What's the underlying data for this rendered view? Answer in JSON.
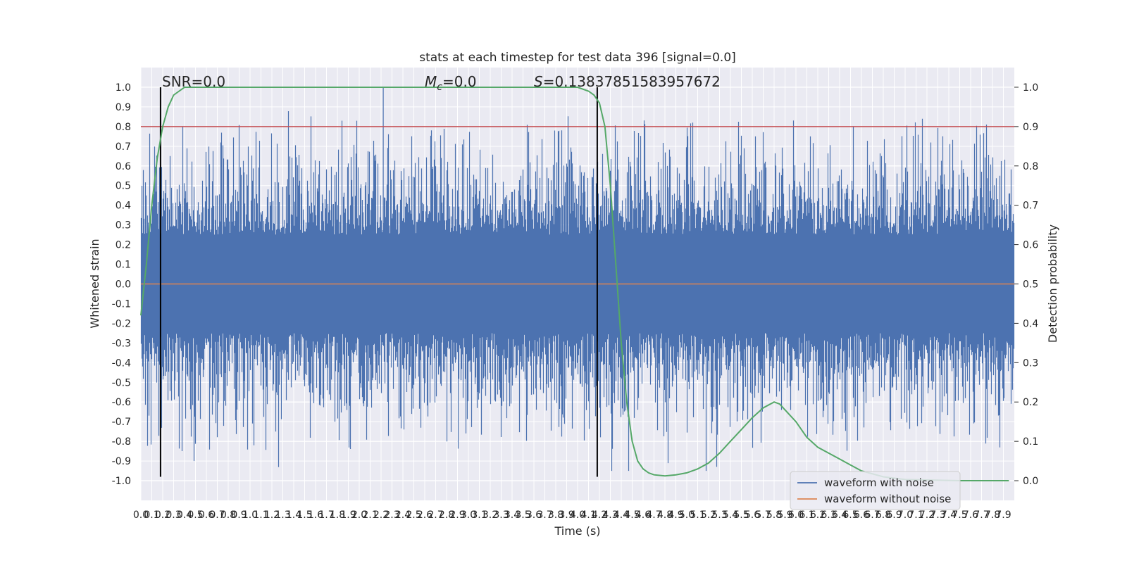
{
  "chart_data": {
    "type": "line",
    "title": "stats at each timestep for test data 396 [signal=0.0]",
    "xlabel": "Time (s)",
    "ylabel": "Whitened strain",
    "y2label": "Detection probability",
    "xlim": [
      0,
      8
    ],
    "ylim": [
      -1.1,
      1.1
    ],
    "y2lim": [
      -0.05,
      1.05
    ],
    "xticks": [
      "0.0",
      "0.1",
      "0.2",
      "0.3",
      "0.4",
      "0.5",
      "0.6",
      "0.7",
      "0.8",
      "0.9",
      "1.0",
      "1.1",
      "1.2",
      "1.3",
      "1.4",
      "1.5",
      "1.6",
      "1.7",
      "1.8",
      "1.9",
      "2.0",
      "2.1",
      "2.2",
      "2.3",
      "2.4",
      "2.5",
      "2.6",
      "2.7",
      "2.8",
      "2.9",
      "3.0",
      "3.1",
      "3.2",
      "3.3",
      "3.4",
      "3.5",
      "3.6",
      "3.7",
      "3.8",
      "3.9",
      "4.0",
      "4.1",
      "4.2",
      "4.3",
      "4.4",
      "4.5",
      "4.6",
      "4.7",
      "4.8",
      "4.9",
      "5.0",
      "5.1",
      "5.2",
      "5.3",
      "5.4",
      "5.5",
      "5.6",
      "5.7",
      "5.8",
      "5.9",
      "6.0",
      "6.1",
      "6.2",
      "6.3",
      "6.4",
      "6.5",
      "6.6",
      "6.7",
      "6.8",
      "6.9",
      "7.0",
      "7.1",
      "7.2",
      "7.3",
      "7.4",
      "7.5",
      "7.6",
      "7.7",
      "7.8",
      "7.9"
    ],
    "yticks": [
      "-1.0",
      "-0.9",
      "-0.8",
      "-0.7",
      "-0.6",
      "-0.5",
      "-0.4",
      "-0.3",
      "-0.2",
      "-0.1",
      "0.0",
      "0.1",
      "0.2",
      "0.3",
      "0.4",
      "0.5",
      "0.6",
      "0.7",
      "0.8",
      "0.9",
      "1.0"
    ],
    "y2ticks": [
      "0.0",
      "0.1",
      "0.2",
      "0.3",
      "0.4",
      "0.5",
      "0.6",
      "0.7",
      "0.8",
      "0.9",
      "1.0"
    ],
    "annotations": {
      "snr": "SNR=0.0",
      "mc_symbol": "M",
      "mc_sub": "c",
      "mc_value": "=0.0",
      "s_symbol": "S",
      "s_value": "=0.13837851583957672"
    },
    "vlines_x": [
      0.18,
      4.18
    ],
    "threshold_y2": 0.9,
    "series": [
      {
        "name": "waveform with noise",
        "color": "#4c72b0",
        "envelope": 0.5,
        "peak": 1.0
      },
      {
        "name": "waveform without noise",
        "color": "#dd8452",
        "values": "0.0"
      },
      {
        "color": "#55a868",
        "x": [
          0.0,
          0.05,
          0.1,
          0.15,
          0.2,
          0.25,
          0.3,
          0.35,
          0.4,
          0.5,
          0.6,
          0.8,
          1.0,
          2.0,
          3.0,
          3.5,
          3.8,
          4.0,
          4.1,
          4.15,
          4.2,
          4.25,
          4.3,
          4.35,
          4.4,
          4.45,
          4.5,
          4.55,
          4.6,
          4.65,
          4.7,
          4.8,
          4.9,
          5.0,
          5.1,
          5.2,
          5.3,
          5.4,
          5.5,
          5.6,
          5.7,
          5.8,
          5.85,
          5.9,
          6.0,
          6.1,
          6.2,
          6.3,
          6.4,
          6.5,
          6.6,
          6.8,
          7.0,
          7.5,
          7.95
        ],
        "values": [
          0.42,
          0.55,
          0.7,
          0.82,
          0.9,
          0.95,
          0.98,
          0.99,
          1.0,
          1.0,
          1.0,
          1.0,
          1.0,
          1.0,
          1.0,
          1.0,
          1.0,
          1.0,
          0.99,
          0.98,
          0.96,
          0.9,
          0.75,
          0.55,
          0.35,
          0.2,
          0.1,
          0.05,
          0.03,
          0.02,
          0.015,
          0.012,
          0.015,
          0.02,
          0.03,
          0.045,
          0.07,
          0.1,
          0.13,
          0.16,
          0.185,
          0.2,
          0.195,
          0.18,
          0.15,
          0.11,
          0.085,
          0.07,
          0.055,
          0.04,
          0.025,
          0.01,
          0.003,
          0.0,
          0.0
        ]
      }
    ],
    "grid": true,
    "legend": "lower right"
  }
}
